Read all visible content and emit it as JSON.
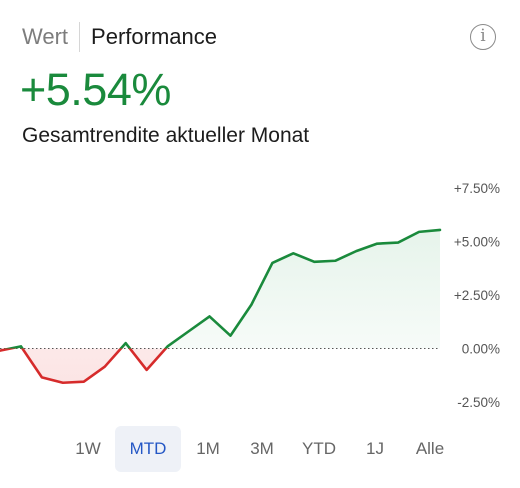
{
  "header": {
    "tab_value": "Wert",
    "tab_performance": "Performance",
    "info_icon_glyph": "i"
  },
  "summary": {
    "value": "+5.54%",
    "label": "Gesamtrendite aktueller Monat"
  },
  "colors": {
    "positive": "#1a8a3c",
    "negative": "#d62b2b",
    "positive_fill": "#e5f3ea",
    "negative_fill": "#fbe3e3",
    "selected_period_bg": "#eef1f7",
    "selected_period_text": "#2457c5"
  },
  "chart_data": {
    "type": "line",
    "title": "",
    "xlabel": "",
    "ylabel": "",
    "ylim": [
      -2.5,
      7.5
    ],
    "y_ticks": [
      "+7.50%",
      "+5.00%",
      "+2.50%",
      "0.00%",
      "-2.50%"
    ],
    "y_tick_values": [
      7.5,
      5.0,
      2.5,
      0.0,
      -2.5
    ],
    "baseline": 0.0,
    "grid": false,
    "series": [
      {
        "values": [
          -0.1,
          0.1,
          -1.35,
          -1.6,
          -1.55,
          -0.85,
          0.25,
          -1.0,
          0.1,
          0.8,
          1.5,
          0.6,
          2.05,
          4.0,
          4.45,
          4.05,
          4.1,
          4.55,
          4.9,
          4.95,
          5.45,
          5.54
        ]
      }
    ]
  },
  "periods": {
    "selected": "MTD",
    "items": [
      "1W",
      "MTD",
      "1M",
      "3M",
      "YTD",
      "1J",
      "Alle"
    ]
  }
}
